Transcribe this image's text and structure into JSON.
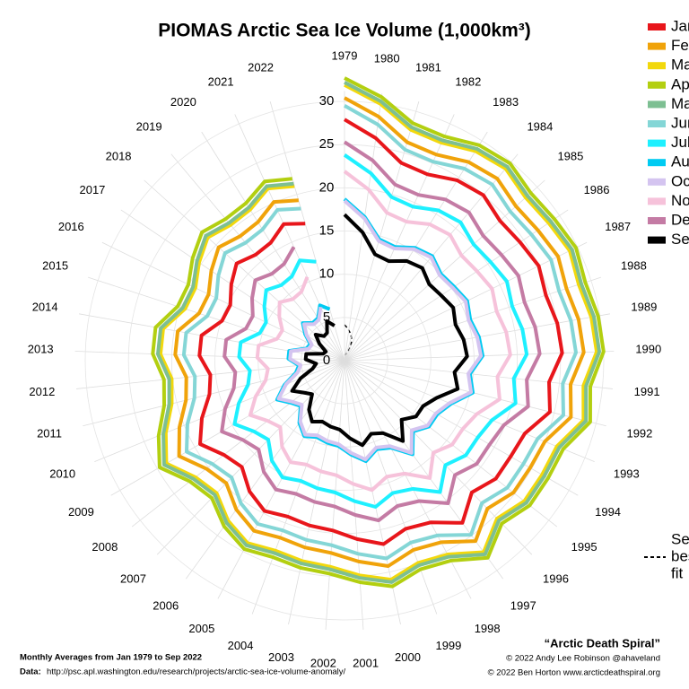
{
  "chart_data": {
    "type": "polar-line",
    "title": "PIOMAS Arctic Sea Ice Volume (1,000km³)",
    "categories": [
      1979,
      1980,
      1981,
      1982,
      1983,
      1984,
      1985,
      1986,
      1987,
      1988,
      1989,
      1990,
      1991,
      1992,
      1993,
      1994,
      1995,
      1996,
      1997,
      1998,
      1999,
      2000,
      2001,
      2002,
      2003,
      2004,
      2005,
      2006,
      2007,
      2008,
      2009,
      2010,
      2011,
      2012,
      2013,
      2014,
      2015,
      2016,
      2017,
      2018,
      2019,
      2020,
      2021,
      2022
    ],
    "rlim": [
      0,
      30
    ],
    "rticks": [
      0,
      5,
      10,
      15,
      20,
      25,
      30
    ],
    "grid": true,
    "legend": "top-right",
    "series": [
      {
        "name": "January",
        "color": "#e8161b",
        "values": [
          27.9,
          26.0,
          23.8,
          23.6,
          24.6,
          25.0,
          24.2,
          24.5,
          25.0,
          24.5,
          25.0,
          25.2,
          23.8,
          24.5,
          22.5,
          22.2,
          22.2,
          21.2,
          23.2,
          21.2,
          20.7,
          21.7,
          20.7,
          19.7,
          19.5,
          19.2,
          19.7,
          18.7,
          17.1,
          17.7,
          19.3,
          17.8,
          16.1,
          15.6,
          16.8,
          16.8,
          14.9,
          14.7,
          15.8,
          16.8,
          16.0,
          16.1,
          17.3,
          16.5
        ]
      },
      {
        "name": "February",
        "color": "#f0a30a",
        "values": [
          30.4,
          28.5,
          26.3,
          26.1,
          27.1,
          27.5,
          26.7,
          27.0,
          27.5,
          27.0,
          27.5,
          27.7,
          26.3,
          27.0,
          25.0,
          24.8,
          24.8,
          23.8,
          25.8,
          23.8,
          23.3,
          24.3,
          23.3,
          22.3,
          22.1,
          21.8,
          22.3,
          21.3,
          19.7,
          20.3,
          22.1,
          20.6,
          18.9,
          18.4,
          19.6,
          19.6,
          17.7,
          17.5,
          18.6,
          19.6,
          18.8,
          18.9,
          20.1,
          19.3
        ]
      },
      {
        "name": "March",
        "color": "#f2d80c",
        "values": [
          31.9,
          30.0,
          27.8,
          27.6,
          28.6,
          29.0,
          28.2,
          28.5,
          29.0,
          28.5,
          29.0,
          29.2,
          27.8,
          28.5,
          26.5,
          26.4,
          26.4,
          25.4,
          27.4,
          25.4,
          24.9,
          25.9,
          24.9,
          23.9,
          23.7,
          23.4,
          23.9,
          22.9,
          21.3,
          21.9,
          23.8,
          22.3,
          20.6,
          20.1,
          21.3,
          21.3,
          19.4,
          19.2,
          20.3,
          21.3,
          20.5,
          20.6,
          21.8,
          21.0
        ]
      },
      {
        "name": "April",
        "color": "#b3cf10",
        "values": [
          32.7,
          30.8,
          28.6,
          28.4,
          29.4,
          29.8,
          29.0,
          29.3,
          29.8,
          29.3,
          29.8,
          30.0,
          28.6,
          29.3,
          27.3,
          27.2,
          27.2,
          26.2,
          28.2,
          26.2,
          25.7,
          26.7,
          25.7,
          24.7,
          24.5,
          24.2,
          24.7,
          23.7,
          22.1,
          22.7,
          24.7,
          23.2,
          21.5,
          21.0,
          22.2,
          22.2,
          20.3,
          20.1,
          21.2,
          22.2,
          21.4,
          21.5,
          22.7,
          21.9
        ]
      },
      {
        "name": "May",
        "color": "#7dbf92",
        "values": [
          32.2,
          30.3,
          28.1,
          27.9,
          28.9,
          29.3,
          28.5,
          28.8,
          29.3,
          28.8,
          29.3,
          29.5,
          28.1,
          28.8,
          26.8,
          26.7,
          26.7,
          25.7,
          27.7,
          25.7,
          25.2,
          26.2,
          25.2,
          24.2,
          24.0,
          23.7,
          24.2,
          23.2,
          21.6,
          22.2,
          24.1,
          22.6,
          20.9,
          20.4,
          21.6,
          21.6,
          19.7,
          19.5,
          20.6,
          21.6,
          20.8,
          20.9,
          22.1,
          21.3
        ]
      },
      {
        "name": "June",
        "color": "#84d6d6",
        "values": [
          29.5,
          27.6,
          25.4,
          25.2,
          26.2,
          26.6,
          25.8,
          26.1,
          26.6,
          26.1,
          26.6,
          26.8,
          25.4,
          26.1,
          24.1,
          23.9,
          23.9,
          22.9,
          24.9,
          22.9,
          22.4,
          23.4,
          22.4,
          21.4,
          21.2,
          20.9,
          21.4,
          20.4,
          18.8,
          19.4,
          21.1,
          19.6,
          17.9,
          17.4,
          18.6,
          18.6,
          16.7,
          16.5,
          17.6,
          18.6,
          17.8,
          17.9,
          19.1,
          18.3
        ]
      },
      {
        "name": "July",
        "color": "#1ef0ff",
        "values": [
          23.8,
          21.9,
          19.7,
          19.5,
          20.5,
          20.9,
          20.1,
          20.4,
          20.9,
          20.4,
          20.9,
          21.1,
          19.7,
          20.4,
          18.4,
          17.8,
          17.8,
          16.8,
          18.8,
          16.8,
          16.3,
          17.3,
          16.3,
          15.3,
          15.1,
          14.8,
          15.3,
          14.3,
          12.7,
          13.3,
          14.7,
          13.2,
          11.5,
          11.0,
          12.2,
          12.2,
          10.3,
          10.1,
          11.2,
          12.2,
          11.4,
          11.5,
          12.7,
          11.9
        ]
      },
      {
        "name": "August",
        "color": "#00cbf2",
        "values": [
          18.7,
          16.8,
          14.6,
          14.4,
          15.4,
          15.8,
          15.0,
          15.3,
          15.8,
          15.3,
          15.8,
          16.0,
          14.6,
          15.3,
          13.3,
          12.4,
          12.4,
          11.4,
          13.4,
          11.4,
          10.9,
          11.9,
          10.9,
          9.9,
          9.7,
          9.4,
          9.9,
          8.9,
          7.3,
          7.9,
          9.0,
          7.5,
          5.8,
          5.3,
          6.5,
          6.5,
          4.6,
          4.4,
          5.5,
          6.5,
          5.7,
          5.8,
          7.0,
          6.2
        ]
      },
      {
        "name": "October",
        "color": "#d4c4f0",
        "values": [
          18.5,
          16.6,
          14.4,
          14.2,
          15.2,
          15.6,
          14.8,
          15.1,
          15.6,
          15.1,
          15.6,
          15.8,
          14.4,
          15.1,
          13.1,
          12.2,
          12.2,
          11.2,
          13.2,
          11.2,
          10.7,
          11.7,
          10.7,
          9.7,
          9.5,
          9.2,
          9.7,
          8.7,
          7.1,
          7.7,
          8.8,
          7.3,
          5.6,
          5.1,
          6.3,
          6.3,
          4.4,
          4.2,
          5.3,
          6.3,
          5.5,
          5.6,
          6.8,
          null
        ]
      },
      {
        "name": "November",
        "color": "#f6c2da",
        "values": [
          21.9,
          20.0,
          17.8,
          17.6,
          18.6,
          19.0,
          18.2,
          18.5,
          19.0,
          18.5,
          19.0,
          19.2,
          17.8,
          18.5,
          16.5,
          15.8,
          15.8,
          14.8,
          16.8,
          14.8,
          14.3,
          15.3,
          14.3,
          13.3,
          13.1,
          12.8,
          13.3,
          12.3,
          10.7,
          11.3,
          12.6,
          11.1,
          9.4,
          8.9,
          10.1,
          10.1,
          8.2,
          8.0,
          9.1,
          10.1,
          9.3,
          9.4,
          10.6,
          null
        ]
      },
      {
        "name": "December",
        "color": "#c47ba4",
        "values": [
          25.3,
          23.4,
          21.2,
          21.0,
          22.0,
          22.4,
          21.6,
          21.9,
          22.4,
          21.9,
          22.4,
          22.6,
          21.2,
          21.9,
          19.9,
          19.4,
          19.4,
          18.4,
          20.4,
          18.4,
          17.9,
          18.9,
          17.9,
          16.9,
          16.7,
          16.4,
          16.9,
          15.9,
          14.3,
          14.9,
          16.4,
          14.9,
          13.2,
          12.7,
          13.9,
          13.9,
          12.0,
          11.8,
          12.9,
          13.9,
          13.1,
          13.2,
          14.4,
          null
        ]
      },
      {
        "name": "September",
        "color": "#000000",
        "values": [
          16.9,
          15.0,
          12.8,
          12.6,
          13.6,
          14.0,
          13.2,
          13.5,
          14.0,
          13.5,
          14.0,
          14.2,
          12.8,
          13.5,
          11.5,
          10.5,
          10.5,
          9.5,
          11.5,
          9.5,
          9.0,
          10.0,
          9.0,
          8.0,
          7.8,
          7.5,
          8.0,
          7.0,
          5.4,
          6.0,
          7.0,
          5.5,
          3.8,
          3.3,
          4.5,
          4.5,
          2.6,
          2.4,
          3.5,
          4.5,
          3.7,
          3.8,
          5.0,
          4.2
        ]
      }
    ],
    "fit_label": [
      "Sep",
      "best",
      "fit"
    ],
    "subtitle": "Monthly Averages from Jan 1979 to Sep 2022",
    "source_label": "Data:",
    "source_url": "http://psc.apl.washington.edu/research/projects/arctic-sea-ice-volume-anomaly/",
    "credit_title": "“Arctic Death Spiral”",
    "credits": [
      "© 2022 Andy Lee Robinson @ahaveland",
      "© 2022 Ben Horton www.arcticdeathspiral.org"
    ]
  }
}
